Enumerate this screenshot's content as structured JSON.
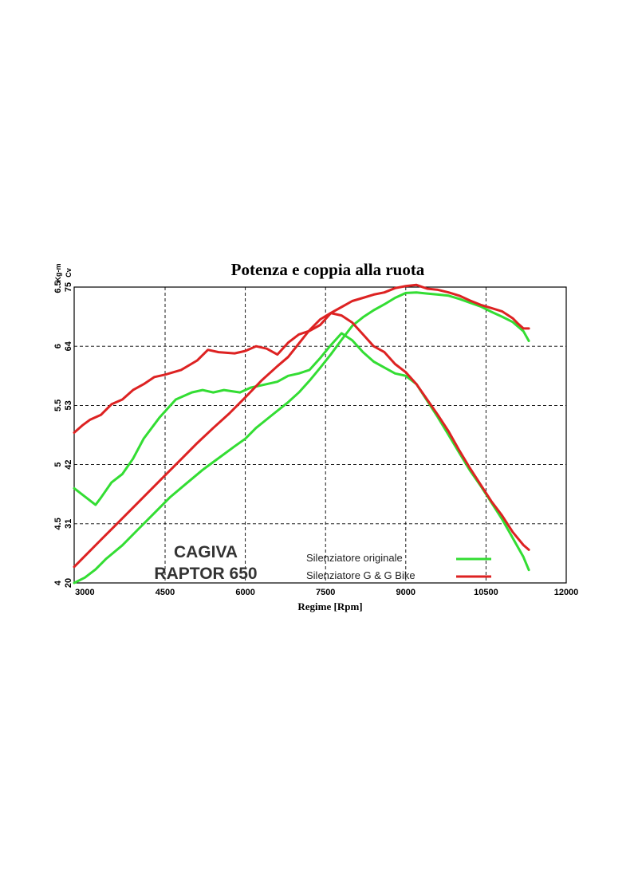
{
  "chart_data": {
    "type": "line",
    "title": "Potenza e coppia alla ruota",
    "xlabel": "Regime [Rpm]",
    "xlim": [
      2800,
      12000
    ],
    "x_ticks": [
      "3000",
      "4500",
      "6000",
      "7500",
      "9000",
      "10500",
      "12000"
    ],
    "y_torque": {
      "unit": "Kg-m",
      "lim": [
        4,
        6.5
      ],
      "ticks": [
        "4",
        "4.5",
        "5",
        "5.5",
        "6",
        "6.5"
      ]
    },
    "y_power": {
      "unit": "Cv",
      "lim": [
        20,
        75
      ],
      "ticks": [
        "20",
        "31",
        "42",
        "53",
        "64",
        "75"
      ]
    },
    "grid": true,
    "legend_position": "bottom-right",
    "annotation": {
      "line1": "CAGIVA",
      "line2": "RAPTOR 650"
    },
    "series": [
      {
        "name": "Silenziatore originale",
        "color": "#33dd33",
        "quantity": "torque",
        "x": [
          2800,
          3000,
          3200,
          3300,
          3500,
          3700,
          3900,
          4100,
          4400,
          4700,
          5000,
          5200,
          5400,
          5600,
          5900,
          6100,
          6400,
          6600,
          6800,
          7000,
          7200,
          7400,
          7600,
          7800,
          8000,
          8200,
          8400,
          8600,
          8800,
          9000,
          9200,
          9400,
          9600,
          9800,
          10000,
          10200,
          10400,
          10600,
          10800,
          11000,
          11200,
          11300
        ],
        "y": [
          4.8,
          4.73,
          4.66,
          4.72,
          4.85,
          4.92,
          5.05,
          5.22,
          5.4,
          5.55,
          5.61,
          5.63,
          5.61,
          5.63,
          5.61,
          5.65,
          5.68,
          5.7,
          5.75,
          5.77,
          5.8,
          5.9,
          6.01,
          6.11,
          6.05,
          5.95,
          5.87,
          5.82,
          5.77,
          5.75,
          5.68,
          5.54,
          5.4,
          5.25,
          5.1,
          4.95,
          4.82,
          4.68,
          4.54,
          4.38,
          4.22,
          4.11
        ]
      },
      {
        "name": "Silenziatore originale",
        "color": "#33dd33",
        "quantity": "power",
        "x": [
          2800,
          3000,
          3200,
          3400,
          3700,
          4000,
          4300,
          4600,
          4900,
          5200,
          5500,
          5800,
          6000,
          6200,
          6500,
          6800,
          7000,
          7200,
          7400,
          7600,
          7800,
          8000,
          8200,
          8400,
          8600,
          8800,
          9000,
          9200,
          9400,
          9600,
          9800,
          10000,
          10200,
          10400,
          10600,
          10800,
          11000,
          11200,
          11300
        ],
        "y": [
          20,
          21,
          22.5,
          24.5,
          27,
          30,
          33,
          36,
          38.5,
          41,
          43.2,
          45.4,
          46.8,
          48.8,
          51.2,
          53.6,
          55.4,
          57.6,
          60,
          62.5,
          65.2,
          67.8,
          69.4,
          70.7,
          71.8,
          73,
          73.9,
          74,
          73.8,
          73.6,
          73.4,
          72.8,
          72.1,
          71.4,
          70.4,
          69.5,
          68.5,
          66.8,
          65
        ]
      },
      {
        "name": "Silenziatore G & G Bike",
        "color": "#dd2222",
        "quantity": "torque",
        "x": [
          2800,
          2950,
          3100,
          3300,
          3500,
          3700,
          3900,
          4100,
          4300,
          4500,
          4800,
          5100,
          5300,
          5500,
          5800,
          6000,
          6200,
          6400,
          6600,
          6800,
          7000,
          7200,
          7400,
          7600,
          7800,
          8000,
          8200,
          8400,
          8600,
          8800,
          9000,
          9200,
          9400,
          9600,
          9800,
          10000,
          10200,
          10400,
          10600,
          10800,
          11000,
          11200,
          11300
        ],
        "y": [
          5.27,
          5.33,
          5.38,
          5.42,
          5.51,
          5.55,
          5.63,
          5.68,
          5.74,
          5.76,
          5.8,
          5.88,
          5.97,
          5.95,
          5.94,
          5.96,
          6.0,
          5.98,
          5.93,
          6.03,
          6.1,
          6.13,
          6.18,
          6.28,
          6.26,
          6.2,
          6.1,
          6.0,
          5.95,
          5.85,
          5.78,
          5.68,
          5.55,
          5.42,
          5.28,
          5.12,
          4.97,
          4.83,
          4.69,
          4.57,
          4.43,
          4.32,
          4.28
        ]
      },
      {
        "name": "Silenziatore G & G Bike",
        "color": "#dd2222",
        "quantity": "power",
        "x": [
          2800,
          3000,
          3300,
          3600,
          3900,
          4200,
          4500,
          4800,
          5100,
          5400,
          5700,
          6000,
          6300,
          6600,
          6800,
          7000,
          7200,
          7400,
          7600,
          7800,
          8000,
          8200,
          8400,
          8600,
          8800,
          9000,
          9200,
          9400,
          9600,
          9800,
          10000,
          10200,
          10400,
          10600,
          10800,
          11000,
          11100,
          11200,
          11300
        ],
        "y": [
          23,
          25,
          28,
          31,
          34,
          37,
          40,
          43,
          46,
          48.8,
          51.5,
          54.5,
          57.6,
          60.3,
          62,
          64.5,
          67,
          69,
          70.2,
          71.3,
          72.4,
          73,
          73.6,
          74,
          74.8,
          75.2,
          75.4,
          74.7,
          74.5,
          74,
          73.4,
          72.5,
          71.7,
          71.1,
          70.5,
          69.2,
          68.2,
          67.3,
          67.3
        ]
      }
    ]
  }
}
